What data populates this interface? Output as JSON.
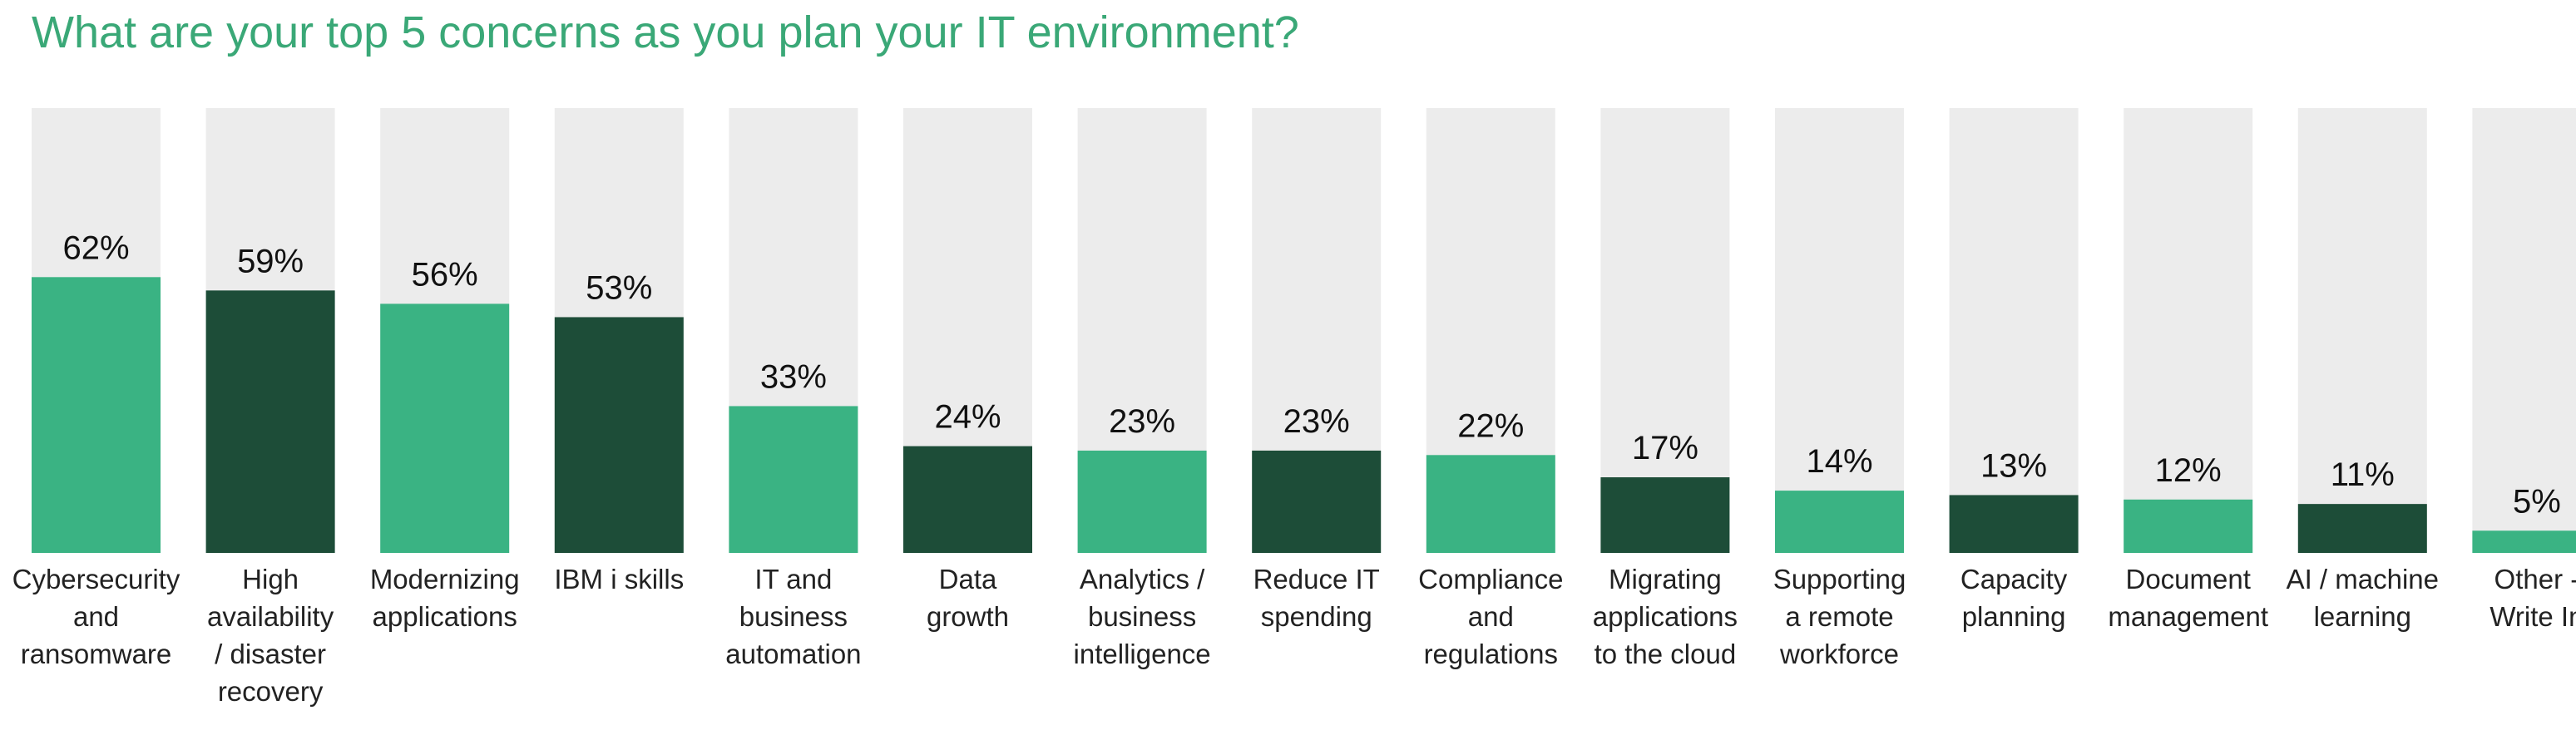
{
  "chart_data": {
    "type": "bar",
    "title": "What are your top 5 concerns as you plan your IT environment?",
    "ylim": [
      0,
      100
    ],
    "grid": false,
    "legend": "none",
    "value_suffix": "%",
    "colors": {
      "light": "#3ab383",
      "dark": "#1d4d38",
      "track": "#ececec",
      "title": "#3aa877"
    },
    "categories": [
      "Cybersecurity and ransomware",
      "High availability / disaster recovery",
      "Modernizing applications",
      "IBM i skills",
      "IT and business automation",
      "Data growth",
      "Analytics / business intelligence",
      "Reduce IT spending",
      "Compliance and regulations",
      "Migrating applications to the cloud",
      "Supporting a remote workforce",
      "Capacity planning",
      "Document management",
      "AI / machine learning",
      "Other - Write In"
    ],
    "category_lines": [
      [
        "Cybersecurity",
        "and",
        "ransomware"
      ],
      [
        "High",
        "availability",
        "/ disaster",
        "recovery"
      ],
      [
        "Modernizing",
        "applications"
      ],
      [
        "IBM i skills"
      ],
      [
        "IT and",
        "business",
        "automation"
      ],
      [
        "Data",
        "growth"
      ],
      [
        "Analytics /",
        "business",
        "intelligence"
      ],
      [
        "Reduce IT",
        "spending"
      ],
      [
        "Compliance",
        "and",
        "regulations"
      ],
      [
        "Migrating",
        "applications",
        "to the cloud"
      ],
      [
        "Supporting",
        "a remote",
        "workforce"
      ],
      [
        "Capacity",
        "planning"
      ],
      [
        "Document",
        "management"
      ],
      [
        "AI / machine",
        "learning"
      ],
      [
        "Other -",
        "Write In"
      ]
    ],
    "values": [
      62,
      59,
      56,
      53,
      33,
      24,
      23,
      23,
      22,
      17,
      14,
      13,
      12,
      11,
      5
    ]
  }
}
